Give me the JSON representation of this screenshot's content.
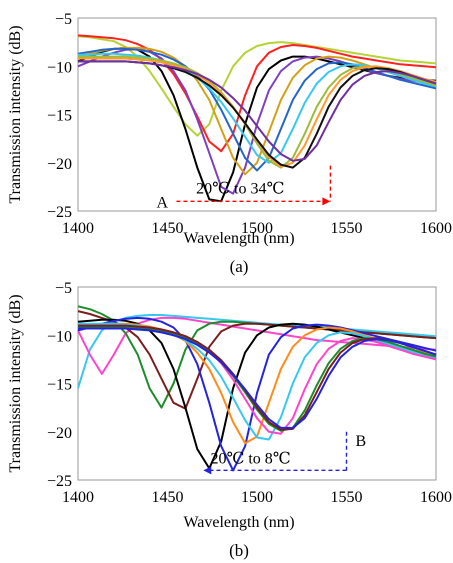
{
  "chart_data": [
    {
      "type": "line",
      "panel_label": "(a)",
      "xlabel": "Wavelength (nm)",
      "ylabel": "Transmission intensity (dB)",
      "xlim": [
        1400,
        1600
      ],
      "ylim": [
        -25,
        -5
      ],
      "xticks": [
        "1400",
        "1450",
        "1500",
        "1550",
        "1600"
      ],
      "yticks": [
        "−5",
        "−10",
        "−15",
        "−20",
        "−25"
      ],
      "grid": false,
      "annotations": {
        "point_a": "A",
        "range": "20℃  to 34℃",
        "arrow_from": 1455,
        "arrow_to": 1541,
        "arrow_y": -24.0,
        "vline_x": 1541,
        "vline_top": -20.3
      },
      "series": [
        {
          "color": "#b5d334",
          "values": [
            -6.9,
            -7.0,
            -7.2,
            -7.4,
            -8.0,
            -9.0,
            -10.5,
            -12.3,
            -14.2,
            -16.0,
            -17.2,
            -16.0,
            -12.5,
            -10.0,
            -8.6,
            -7.9,
            -7.6,
            -7.5,
            -7.6,
            -7.8,
            -8.0,
            -8.2,
            -8.4,
            -8.6,
            -8.8,
            -9.0,
            -9.2,
            -9.4,
            -9.5,
            -9.6,
            -9.7
          ]
        },
        {
          "color": "#ff2020",
          "values": [
            -6.8,
            -6.9,
            -7.0,
            -7.1,
            -7.3,
            -7.7,
            -8.3,
            -9.3,
            -10.8,
            -12.8,
            -15.2,
            -17.8,
            -18.8,
            -17.0,
            -13.0,
            -10.0,
            -8.6,
            -8.0,
            -7.8,
            -7.9,
            -8.1,
            -8.4,
            -8.7,
            -9.0,
            -9.2,
            -9.4,
            -9.6,
            -9.8,
            -9.9,
            -10.0,
            -10.1
          ]
        },
        {
          "color": "#000000",
          "values": [
            -9.5,
            -9.0,
            -8.5,
            -8.2,
            -8.1,
            -8.3,
            -9.0,
            -10.5,
            -13.0,
            -16.5,
            -20.5,
            -23.8,
            -24.0,
            -21.0,
            -16.0,
            -12.2,
            -10.3,
            -9.4,
            -9.0,
            -9.0,
            -9.2,
            -9.5,
            -9.8,
            -10.1,
            -10.4,
            -10.7,
            -11.0,
            -11.2,
            -11.3,
            -11.4,
            -11.5
          ]
        },
        {
          "color": "#7f3fbf",
          "values": [
            -10.0,
            -9.5,
            -9.0,
            -8.6,
            -8.3,
            -8.2,
            -8.5,
            -9.2,
            -10.5,
            -12.5,
            -15.5,
            -19.0,
            -22.5,
            -23.2,
            -20.5,
            -16.0,
            -12.5,
            -10.5,
            -9.5,
            -9.1,
            -9.0,
            -9.2,
            -9.5,
            -9.9,
            -10.3,
            -10.7,
            -11.0,
            -11.3,
            -11.5,
            -11.7,
            -11.9
          ]
        },
        {
          "color": "#d4a017",
          "values": [
            -9.0,
            -8.7,
            -8.4,
            -8.2,
            -8.1,
            -8.1,
            -8.2,
            -8.5,
            -9.1,
            -10.0,
            -11.5,
            -13.5,
            -16.5,
            -19.5,
            -21.2,
            -20.0,
            -16.8,
            -13.5,
            -11.2,
            -9.9,
            -9.2,
            -9.0,
            -9.1,
            -9.4,
            -9.8,
            -10.2,
            -10.6,
            -11.0,
            -11.3,
            -11.6,
            -11.8
          ]
        },
        {
          "color": "#2466c8",
          "values": [
            -8.7,
            -8.5,
            -8.3,
            -8.2,
            -8.2,
            -8.3,
            -8.5,
            -8.8,
            -9.3,
            -10.0,
            -11.0,
            -12.4,
            -14.5,
            -17.0,
            -19.5,
            -20.8,
            -19.5,
            -16.5,
            -13.5,
            -11.5,
            -10.3,
            -9.7,
            -9.6,
            -9.8,
            -10.2,
            -10.6,
            -11.0,
            -11.4,
            -11.7,
            -12.0,
            -12.3
          ]
        },
        {
          "color": "#37c8ee",
          "values": [
            -8.8,
            -8.8,
            -8.7,
            -8.7,
            -8.8,
            -8.9,
            -9.1,
            -9.4,
            -9.8,
            -10.4,
            -11.2,
            -12.3,
            -13.7,
            -15.4,
            -17.3,
            -19.2,
            -20.0,
            -19.0,
            -16.5,
            -13.8,
            -11.8,
            -10.6,
            -10.0,
            -9.8,
            -9.9,
            -10.2,
            -10.6,
            -11.0,
            -11.4,
            -11.8,
            -12.1
          ]
        },
        {
          "color": "#9bbd3a",
          "values": [
            -9.0,
            -9.0,
            -9.0,
            -9.0,
            -9.0,
            -9.1,
            -9.2,
            -9.4,
            -9.7,
            -10.1,
            -10.7,
            -11.5,
            -12.7,
            -14.2,
            -16.0,
            -18.0,
            -19.8,
            -20.5,
            -19.5,
            -17.0,
            -14.2,
            -12.2,
            -10.9,
            -10.2,
            -10.0,
            -10.1,
            -10.4,
            -10.8,
            -11.2,
            -11.6,
            -12.0
          ]
        },
        {
          "color": "#ff9a30",
          "values": [
            -9.2,
            -9.2,
            -9.2,
            -9.2,
            -9.2,
            -9.3,
            -9.4,
            -9.6,
            -9.9,
            -10.3,
            -10.9,
            -11.7,
            -12.8,
            -14.2,
            -15.9,
            -17.7,
            -19.4,
            -20.4,
            -20.0,
            -18.2,
            -15.5,
            -13.0,
            -11.4,
            -10.5,
            -10.1,
            -10.0,
            -10.2,
            -10.5,
            -10.9,
            -11.3,
            -11.6
          ]
        },
        {
          "color": "#101010",
          "values": [
            -9.5,
            -9.5,
            -9.5,
            -9.5,
            -9.5,
            -9.6,
            -9.7,
            -9.9,
            -10.2,
            -10.6,
            -11.2,
            -12.0,
            -13.0,
            -14.3,
            -15.9,
            -17.6,
            -19.2,
            -20.2,
            -20.5,
            -19.5,
            -17.0,
            -14.2,
            -12.2,
            -11.0,
            -10.4,
            -10.2,
            -10.3,
            -10.6,
            -11.0,
            -11.4,
            -11.8
          ]
        },
        {
          "color": "#7030a0",
          "values": [
            -9.5,
            -9.5,
            -9.5,
            -9.5,
            -9.5,
            -9.6,
            -9.7,
            -9.9,
            -10.1,
            -10.4,
            -10.8,
            -11.4,
            -12.2,
            -13.3,
            -14.6,
            -16.2,
            -17.8,
            -19.1,
            -19.8,
            -19.6,
            -18.2,
            -15.8,
            -13.5,
            -11.9,
            -11.0,
            -10.6,
            -10.5,
            -10.7,
            -11.0,
            -11.4,
            -11.8
          ]
        }
      ]
    },
    {
      "type": "line",
      "panel_label": "(b)",
      "xlabel": "Wavelength (nm)",
      "ylabel": "Transmission intensity (dB)",
      "xlim": [
        1400,
        1600
      ],
      "ylim": [
        -25,
        -5
      ],
      "xticks": [
        "1400",
        "1450",
        "1500",
        "1550",
        "1600"
      ],
      "yticks": [
        "−5",
        "−10",
        "−15",
        "−20",
        "−25"
      ],
      "grid": false,
      "annotations": {
        "point_b": "B",
        "range": "20℃   to 8℃",
        "arrow_from": 1550,
        "arrow_to": 1470,
        "arrow_y": -24.0,
        "vline_x": 1550,
        "vline_top": -20.0
      },
      "series": [
        {
          "color": "#37c8ee",
          "values": [
            -15.5,
            -11.5,
            -9.5,
            -8.6,
            -8.2,
            -8.0,
            -7.9,
            -7.9,
            -8.0,
            -8.1,
            -8.2,
            -8.3,
            -8.4,
            -8.5,
            -8.6,
            -8.7,
            -8.8,
            -8.9,
            -9.0,
            -9.0,
            -9.1,
            -9.2,
            -9.3,
            -9.4,
            -9.5,
            -9.6,
            -9.7,
            -9.8,
            -9.9,
            -10.0,
            -10.1
          ]
        },
        {
          "color": "#ff44cc",
          "values": [
            -9.5,
            -12.0,
            -14.0,
            -12.0,
            -9.8,
            -8.8,
            -8.4,
            -8.2,
            -8.2,
            -8.3,
            -8.5,
            -8.7,
            -8.9,
            -9.1,
            -9.3,
            -9.5,
            -9.7,
            -9.9,
            -10.1,
            -10.3,
            -10.5,
            -10.6,
            -10.7,
            -10.8,
            -10.9,
            -11.0,
            -11.1,
            -11.2,
            -11.3,
            -11.4,
            -11.5
          ]
        },
        {
          "color": "#1c8c2c",
          "values": [
            -7.0,
            -7.3,
            -7.8,
            -8.5,
            -9.8,
            -12.0,
            -15.5,
            -17.5,
            -15.0,
            -11.5,
            -9.5,
            -8.8,
            -8.6,
            -8.6,
            -8.7,
            -8.8,
            -8.9,
            -9.0,
            -9.1,
            -9.2,
            -9.3,
            -9.4,
            -9.5,
            -9.6,
            -9.7,
            -9.8,
            -9.9,
            -10.0,
            -10.1,
            -10.2,
            -10.3
          ]
        },
        {
          "color": "#7a1f1f",
          "values": [
            -7.5,
            -7.8,
            -8.2,
            -8.6,
            -9.2,
            -10.2,
            -12.0,
            -14.5,
            -17.0,
            -17.6,
            -14.5,
            -11.2,
            -9.6,
            -9.0,
            -8.8,
            -8.8,
            -8.9,
            -9.0,
            -9.1,
            -9.2,
            -9.3,
            -9.4,
            -9.5,
            -9.6,
            -9.7,
            -9.8,
            -9.9,
            -10.0,
            -10.1,
            -10.2,
            -10.3
          ]
        },
        {
          "color": "#000000",
          "values": [
            -8.6,
            -8.5,
            -8.4,
            -8.4,
            -8.5,
            -8.8,
            -9.5,
            -10.8,
            -13.5,
            -17.5,
            -21.8,
            -23.8,
            -21.0,
            -15.5,
            -11.8,
            -10.0,
            -9.2,
            -8.9,
            -8.8,
            -8.9,
            -9.1,
            -9.4,
            -9.7,
            -10.0,
            -10.3,
            -10.6,
            -10.9,
            -11.2,
            -11.5,
            -11.8,
            -12.0
          ]
        },
        {
          "color": "#2424dd",
          "values": [
            -9.5,
            -9.2,
            -8.8,
            -8.5,
            -8.3,
            -8.2,
            -8.3,
            -8.6,
            -9.2,
            -10.5,
            -13.0,
            -17.0,
            -21.5,
            -24.0,
            -21.5,
            -16.0,
            -12.0,
            -10.2,
            -9.3,
            -9.0,
            -8.9,
            -9.0,
            -9.2,
            -9.5,
            -9.8,
            -10.1,
            -10.4,
            -10.7,
            -11.0,
            -11.3,
            -11.6
          ]
        },
        {
          "color": "#ff8c1a",
          "values": [
            -9.0,
            -8.9,
            -8.8,
            -8.8,
            -8.8,
            -8.9,
            -9.1,
            -9.4,
            -9.9,
            -10.6,
            -11.8,
            -13.5,
            -16.0,
            -19.0,
            -21.2,
            -20.5,
            -17.0,
            -13.5,
            -11.2,
            -10.0,
            -9.4,
            -9.2,
            -9.3,
            -9.6,
            -10.0,
            -10.4,
            -10.8,
            -11.2,
            -11.5,
            -11.8,
            -12.1
          ]
        },
        {
          "color": "#37c8ee",
          "values": [
            -8.8,
            -8.8,
            -8.8,
            -8.8,
            -8.9,
            -9.0,
            -9.2,
            -9.5,
            -9.9,
            -10.5,
            -11.4,
            -12.6,
            -14.3,
            -16.5,
            -18.8,
            -20.6,
            -20.8,
            -18.5,
            -15.0,
            -12.3,
            -10.8,
            -10.0,
            -9.7,
            -9.8,
            -10.1,
            -10.5,
            -10.9,
            -11.3,
            -11.7,
            -12.0,
            -12.3
          ]
        },
        {
          "color": "#ff44cc",
          "values": [
            -9.0,
            -9.0,
            -9.0,
            -9.0,
            -9.0,
            -9.1,
            -9.2,
            -9.4,
            -9.7,
            -10.1,
            -10.7,
            -11.6,
            -12.9,
            -14.6,
            -16.6,
            -18.6,
            -20.0,
            -20.2,
            -18.6,
            -15.6,
            -13.0,
            -11.4,
            -10.6,
            -10.3,
            -10.4,
            -10.7,
            -11.1,
            -11.5,
            -11.9,
            -12.2,
            -12.5
          ]
        },
        {
          "color": "#1c8c2c",
          "values": [
            -9.2,
            -9.2,
            -9.2,
            -9.2,
            -9.2,
            -9.3,
            -9.4,
            -9.6,
            -9.9,
            -10.3,
            -10.9,
            -11.7,
            -12.8,
            -14.2,
            -15.9,
            -17.7,
            -19.2,
            -19.9,
            -19.6,
            -17.8,
            -15.2,
            -12.9,
            -11.4,
            -10.6,
            -10.3,
            -10.4,
            -10.7,
            -11.1,
            -11.5,
            -11.9,
            -12.2
          ]
        },
        {
          "color": "#7a1f1f",
          "values": [
            -9.0,
            -9.0,
            -9.0,
            -9.0,
            -9.0,
            -9.1,
            -9.2,
            -9.4,
            -9.7,
            -10.1,
            -10.7,
            -11.5,
            -12.6,
            -14.0,
            -15.7,
            -17.5,
            -19.0,
            -19.8,
            -19.7,
            -18.3,
            -15.9,
            -13.5,
            -11.8,
            -10.8,
            -10.4,
            -10.3,
            -10.5,
            -10.8,
            -11.2,
            -11.6,
            -12.0
          ]
        },
        {
          "color": "#2424dd",
          "values": [
            -9.3,
            -9.3,
            -9.3,
            -9.3,
            -9.3,
            -9.4,
            -9.5,
            -9.7,
            -10.0,
            -10.4,
            -11.0,
            -11.8,
            -12.8,
            -14.1,
            -15.6,
            -17.2,
            -18.7,
            -19.6,
            -19.6,
            -18.6,
            -16.6,
            -14.2,
            -12.3,
            -11.2,
            -10.6,
            -10.4,
            -10.5,
            -10.8,
            -11.2,
            -11.6,
            -12.0
          ]
        }
      ]
    }
  ]
}
